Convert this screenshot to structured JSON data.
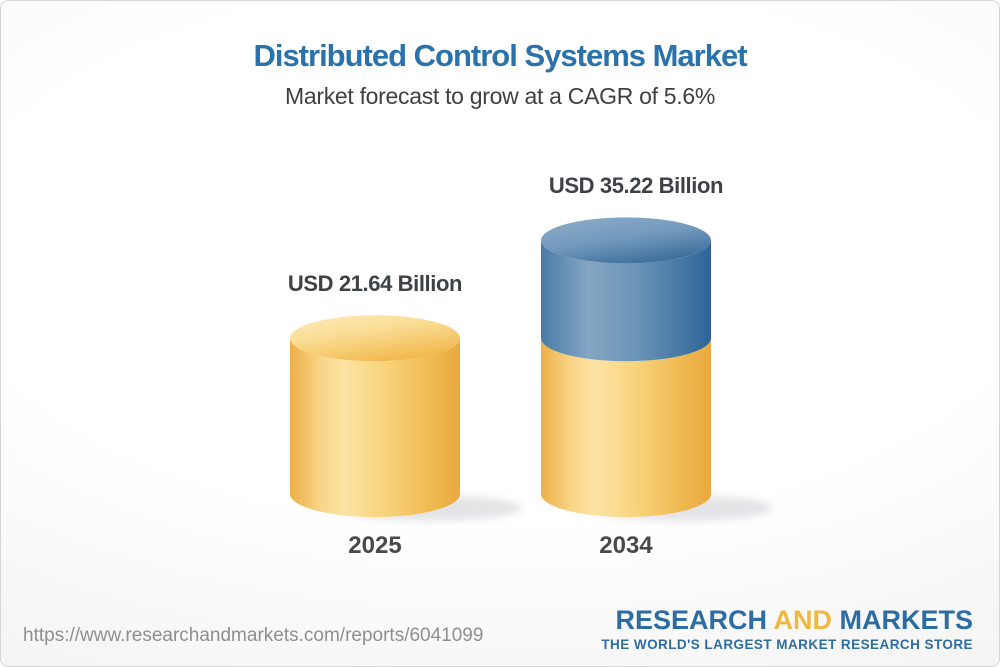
{
  "page": {
    "title": "Distributed Control Systems Market",
    "subtitle": "Market forecast to grow at a CAGR of 5.6%",
    "source_url": "https://www.researchandmarkets.com/reports/6041099",
    "logo": {
      "word1": "RESEARCH",
      "word2": "AND",
      "word3": "MARKETS",
      "tagline": "THE WORLD'S LARGEST MARKET RESEARCH STORE"
    }
  },
  "chart_data": {
    "type": "bar",
    "variant": "3d-cylinder",
    "title": "Distributed Control Systems Market",
    "subtitle": "Market forecast to grow at a CAGR of 5.6%",
    "cagr_percent": 5.6,
    "unit": "USD Billion",
    "categories": [
      "2025",
      "2034"
    ],
    "values": [
      21.64,
      35.22
    ],
    "value_labels": [
      "USD 21.64 Billion",
      "USD 35.22 Billion"
    ],
    "series_note": "2034 cylinder shows the 2025 base level in yellow with the growth segment in blue on top",
    "legend": "none",
    "axes": "none",
    "colors": {
      "base_segment_yellow": "#F6CB6B",
      "growth_segment_blue": "#5585AD",
      "title_text": "#2A72AB",
      "subtitle_text": "#3F4042",
      "label_text": "#3E4145",
      "url_text": "#8D8F91",
      "logo_blue": "#2E6DA4",
      "logo_gold": "#F0B843"
    }
  }
}
